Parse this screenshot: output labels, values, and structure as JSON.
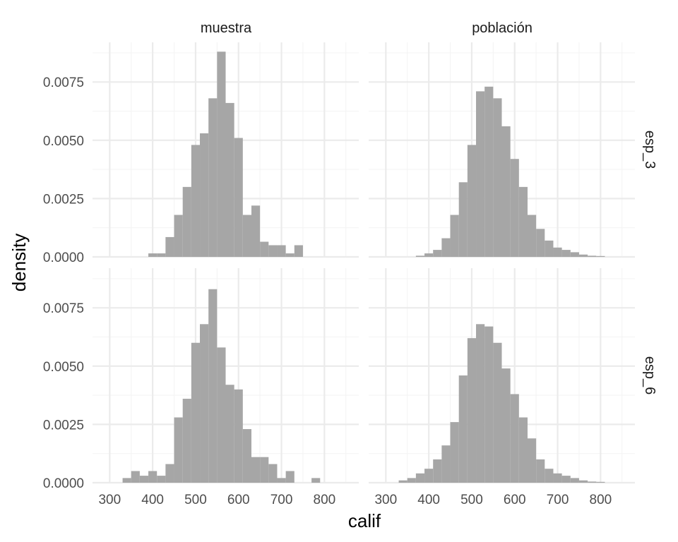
{
  "chart_data": {
    "type": "bar",
    "xlabel": "calif",
    "ylabel": "density",
    "columns": [
      "muestra",
      "población"
    ],
    "rows": [
      "esp_3",
      "esp_6"
    ],
    "x_ticks": [
      300,
      400,
      500,
      600,
      700,
      800
    ],
    "y_ticks": [
      "0.0000",
      "0.0025",
      "0.0050",
      "0.0075"
    ],
    "xlim": [
      260,
      880
    ],
    "ylim": [
      0,
      0.0092
    ],
    "bin_width": 20,
    "grid": true,
    "colors": {
      "bar": "#a6a6a6",
      "grid_major": "#ebebeb",
      "grid_minor": "#f4f4f4"
    },
    "panels": [
      {
        "row": "esp_3",
        "col": "muestra",
        "bin_centers": [
          400,
          420,
          440,
          460,
          480,
          500,
          520,
          540,
          560,
          580,
          600,
          620,
          640,
          660,
          680,
          700,
          720,
          740
        ],
        "density": [
          0.00015,
          0.00015,
          0.00085,
          0.0018,
          0.003,
          0.0048,
          0.0053,
          0.0068,
          0.0088,
          0.0066,
          0.0051,
          0.0018,
          0.0022,
          0.00065,
          0.0005,
          0.0005,
          0.00015,
          0.0005
        ]
      },
      {
        "row": "esp_3",
        "col": "población",
        "bin_centers": [
          380,
          400,
          420,
          440,
          460,
          480,
          500,
          520,
          540,
          560,
          580,
          600,
          620,
          640,
          660,
          680,
          700,
          720,
          740,
          760,
          780,
          800
        ],
        "density": [
          5e-05,
          0.00015,
          0.0003,
          0.0008,
          0.0018,
          0.0032,
          0.0048,
          0.0071,
          0.0073,
          0.0068,
          0.0056,
          0.0042,
          0.003,
          0.0018,
          0.0012,
          0.0007,
          0.0004,
          0.0003,
          0.0002,
          0.0001,
          5e-05,
          2e-05
        ]
      },
      {
        "row": "esp_6",
        "col": "muestra",
        "bin_centers": [
          340,
          360,
          380,
          400,
          420,
          440,
          460,
          480,
          500,
          520,
          540,
          560,
          580,
          600,
          620,
          640,
          660,
          680,
          700,
          720,
          740,
          760,
          780
        ],
        "density": [
          0.0002,
          0.0005,
          0.0003,
          0.0005,
          0.0003,
          0.0008,
          0.0028,
          0.0036,
          0.006,
          0.0068,
          0.0083,
          0.0058,
          0.0042,
          0.004,
          0.0023,
          0.0011,
          0.0011,
          0.0008,
          0.0002,
          0.0005,
          0,
          0,
          0.0002
        ]
      },
      {
        "row": "esp_6",
        "col": "población",
        "bin_centers": [
          340,
          360,
          380,
          400,
          420,
          440,
          460,
          480,
          500,
          520,
          540,
          560,
          580,
          600,
          620,
          640,
          660,
          680,
          700,
          720,
          740,
          760,
          780,
          800
        ],
        "density": [
          0.0001,
          0.0002,
          0.0004,
          0.0006,
          0.001,
          0.0016,
          0.0026,
          0.0046,
          0.0062,
          0.0068,
          0.0067,
          0.006,
          0.0049,
          0.0038,
          0.0028,
          0.0019,
          0.001,
          0.0006,
          0.0004,
          0.0003,
          0.0002,
          0.0001,
          5e-05,
          2e-05
        ]
      }
    ]
  }
}
